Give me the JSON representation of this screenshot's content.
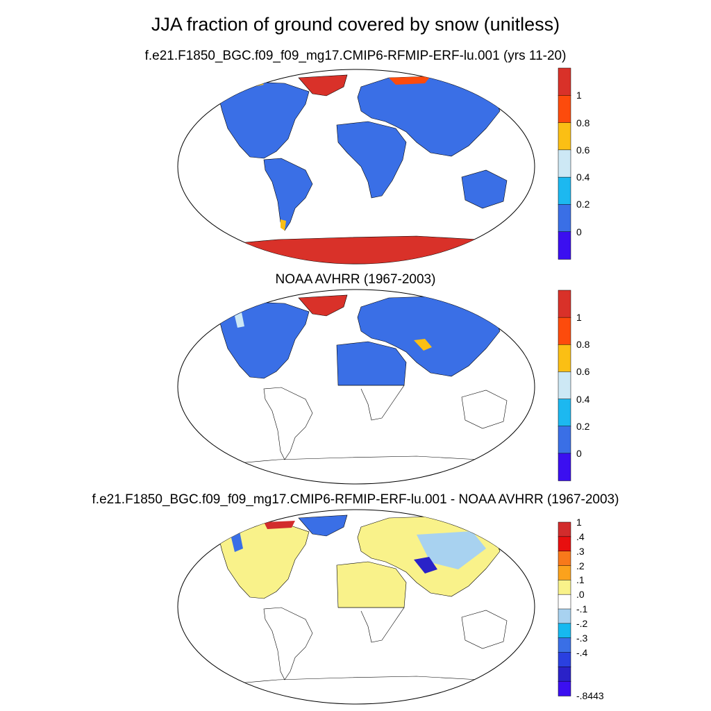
{
  "title": "JJA fraction of ground covered by snow (unitless)",
  "panels": [
    {
      "id": "model",
      "title": "f.e21.F1850_BGC.f09_f09_mg17.CMIP6-RFMIP-ERF-lu.001 (yrs 11-20)",
      "colorbar": {
        "colors": [
          "#3b0ff0",
          "#3a6fe6",
          "#1cb8f0",
          "#cde8f5",
          "#fbbf14",
          "#fd4b0c",
          "#d93129"
        ],
        "labels": [
          "0",
          "0.2",
          "0.4",
          "0.6",
          "0.8",
          "1"
        ]
      }
    },
    {
      "id": "obs",
      "title": "NOAA AVHRR (1967-2003)",
      "colorbar": {
        "colors": [
          "#3b0ff0",
          "#3a6fe6",
          "#1cb8f0",
          "#cde8f5",
          "#fbbf14",
          "#fd4b0c",
          "#d93129"
        ],
        "labels": [
          "0",
          "0.2",
          "0.4",
          "0.6",
          "0.8",
          "1"
        ]
      }
    },
    {
      "id": "diff",
      "title": "f.e21.F1850_BGC.f09_f09_mg17.CMIP6-RFMIP-ERF-lu.001 - NOAA AVHRR (1967-2003)",
      "colorbar": {
        "colors": [
          "#d22c2c",
          "#e80f0f",
          "#f8791a",
          "#fba21c",
          "#f9f28a",
          "#fefefe",
          "#a8d2f0",
          "#16b9f0",
          "#3a6fe6",
          "#2a40e0",
          "#2a22c8",
          "#3b0ff0"
        ],
        "labels": [
          "1",
          ".4",
          ".3",
          ".2",
          ".1",
          ".0",
          "-.1",
          "-.2",
          "-.3",
          "-.4",
          "-.8443"
        ]
      }
    }
  ]
}
